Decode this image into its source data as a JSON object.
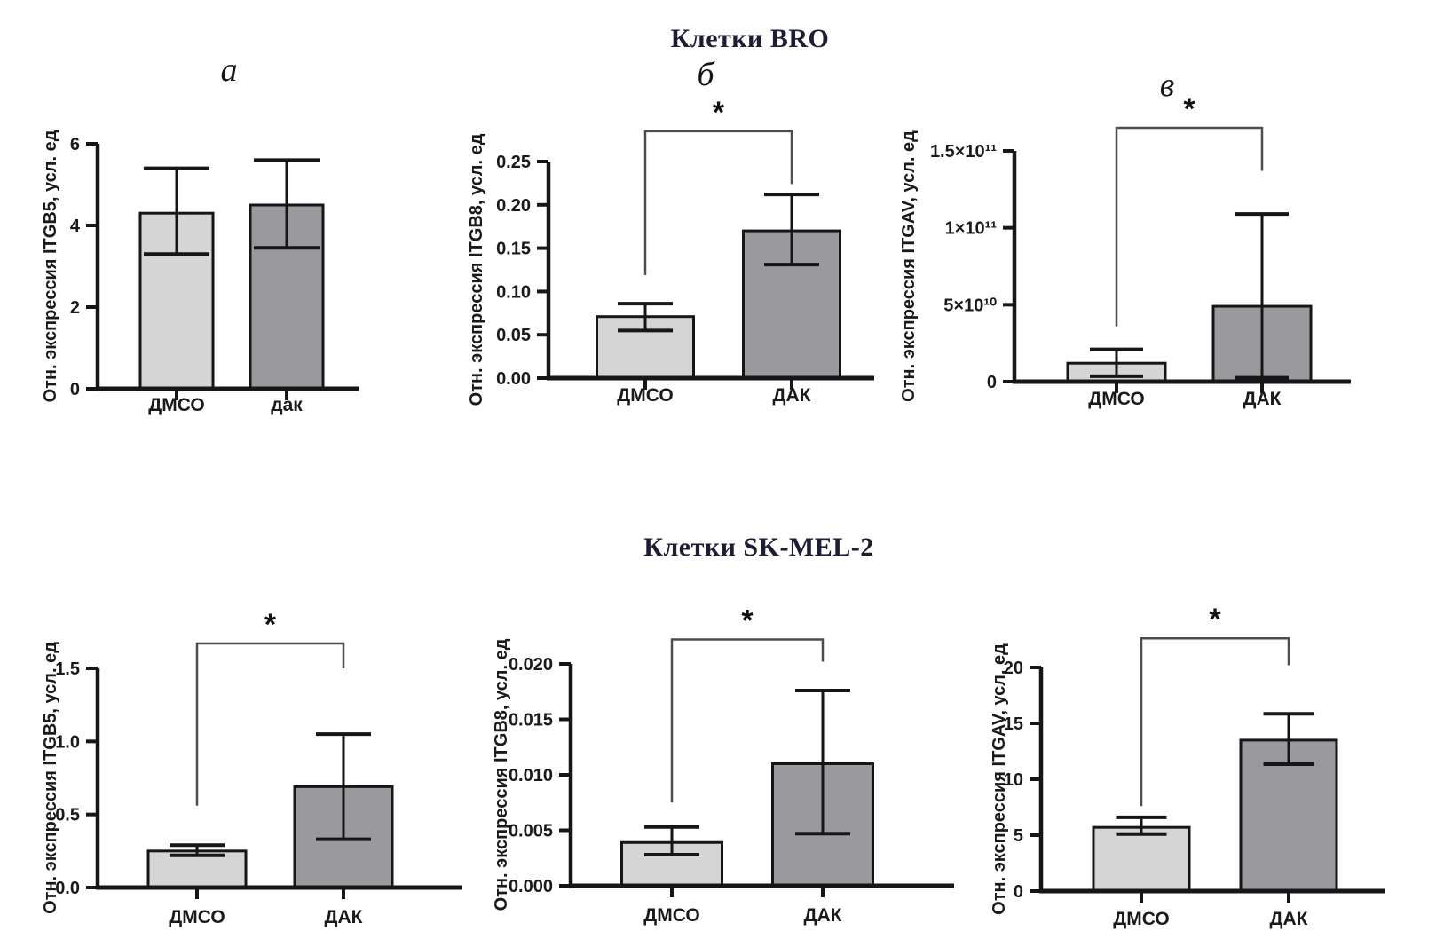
{
  "figure": {
    "titles": {
      "top": "Клетки BRO",
      "bottom": "Клетки SK-MEL-2"
    }
  },
  "style": {
    "axis_color": "#161616",
    "bar_outline_color": "#161616",
    "bracket_color": "#4d4d4d",
    "light_bar_color": "#d5d5d5",
    "dark_bar_color": "#9a9a9e"
  },
  "chart_data": [
    {
      "id": "bro-itgb5",
      "type": "bar",
      "panel_letter": "а",
      "ylabel": "Отн. экспрессия ITGB5, усл. ед",
      "categories": [
        "ДМСО",
        "дак"
      ],
      "values": [
        4.3,
        4.5
      ],
      "error_low": [
        3.3,
        3.45
      ],
      "error_high": [
        5.4,
        5.6
      ],
      "ylim": [
        0,
        6
      ],
      "yticks": [
        0,
        2,
        4,
        6
      ],
      "ytick_labels": [
        "0",
        "2",
        "4",
        "6"
      ],
      "bar_colors": [
        "#d5d5d5",
        "#9a9a9e"
      ],
      "significance": null
    },
    {
      "id": "bro-itgb8",
      "type": "bar",
      "panel_letter": "б",
      "ylabel": "Отн. экспрессия ITGB8, усл. ед",
      "categories": [
        "ДМСО",
        "ДАК"
      ],
      "values": [
        0.071,
        0.17
      ],
      "error_low": [
        0.055,
        0.131
      ],
      "error_high": [
        0.086,
        0.212
      ],
      "ylim": [
        0,
        0.25
      ],
      "yticks": [
        0,
        0.05,
        0.1,
        0.15,
        0.2,
        0.25
      ],
      "ytick_labels": [
        "0.00",
        "0.05",
        "0.10",
        "0.15",
        "0.20",
        "0.25"
      ],
      "bar_colors": [
        "#d5d5d5",
        "#9a9a9e"
      ],
      "significance": {
        "label": "*",
        "top": 0.285,
        "left_drop": 0.119,
        "right_drop": 0.224
      }
    },
    {
      "id": "bro-itgav",
      "type": "bar",
      "panel_letter": "в",
      "ylabel": "Отн. экспрессия ITGAV, усл. ед",
      "categories": [
        "ДМСО",
        "ДАК"
      ],
      "values": [
        12000000000,
        49000000000
      ],
      "error_low": [
        3500000000,
        2500000000
      ],
      "error_high": [
        21000000000,
        109000000000
      ],
      "ylim": [
        0,
        150000000000
      ],
      "yticks": [
        0,
        50000000000,
        100000000000,
        150000000000
      ],
      "ytick_labels": [
        "0",
        "5×10¹⁰",
        "1×10¹¹",
        "1.5×10¹¹"
      ],
      "bar_colors": [
        "#d5d5d5",
        "#9a9a9e"
      ],
      "significance": {
        "label": "*",
        "top": 165000000000,
        "left_drop": 36000000000,
        "right_drop": 137000000000
      }
    },
    {
      "id": "skmel2-itgb5",
      "type": "bar",
      "panel_letter": "",
      "ylabel": "Отн. экспрессия ITGB5, усл. ед",
      "categories": [
        "ДМСО",
        "ДАК"
      ],
      "values": [
        0.25,
        0.69
      ],
      "error_low": [
        0.22,
        0.33
      ],
      "error_high": [
        0.29,
        1.05
      ],
      "ylim": [
        0,
        1.5
      ],
      "yticks": [
        0,
        0.5,
        1.0,
        1.5
      ],
      "ytick_labels": [
        "0.0",
        "0.5",
        "1.0",
        "1.5"
      ],
      "bar_colors": [
        "#d5d5d5",
        "#9a9a9e"
      ],
      "significance": {
        "label": "*",
        "top": 1.67,
        "left_drop": 0.56,
        "right_drop": 1.5
      }
    },
    {
      "id": "skmel2-itgb8",
      "type": "bar",
      "panel_letter": "",
      "ylabel": "Отн. экспрессия ITGB8, усл. ед",
      "categories": [
        "ДМСО",
        "ДАК"
      ],
      "values": [
        0.0039,
        0.011
      ],
      "error_low": [
        0.0028,
        0.0047
      ],
      "error_high": [
        0.0053,
        0.0176
      ],
      "ylim": [
        0,
        0.02
      ],
      "yticks": [
        0,
        0.005,
        0.01,
        0.015,
        0.02
      ],
      "ytick_labels": [
        "0.000",
        "0.005",
        "0.010",
        "0.015",
        "0.020"
      ],
      "bar_colors": [
        "#d5d5d5",
        "#9a9a9e"
      ],
      "significance": {
        "label": "*",
        "top": 0.0222,
        "left_drop": 0.0075,
        "right_drop": 0.0202
      }
    },
    {
      "id": "skmel2-itgav",
      "type": "bar",
      "panel_letter": "",
      "ylabel": "Отн. экспрессия ITGAV, усл. ед",
      "categories": [
        "ДМСО",
        "ДАК"
      ],
      "values": [
        5.7,
        13.5
      ],
      "error_low": [
        5.1,
        11.35
      ],
      "error_high": [
        6.6,
        15.85
      ],
      "ylim": [
        0,
        20
      ],
      "yticks": [
        0,
        5,
        10,
        15,
        20
      ],
      "ytick_labels": [
        "0",
        "5",
        "10",
        "15",
        "20"
      ],
      "bar_colors": [
        "#d5d5d5",
        "#9a9a9e"
      ],
      "significance": {
        "label": "*",
        "top": 22.6,
        "left_drop": 7.6,
        "right_drop": 20.2
      }
    }
  ]
}
